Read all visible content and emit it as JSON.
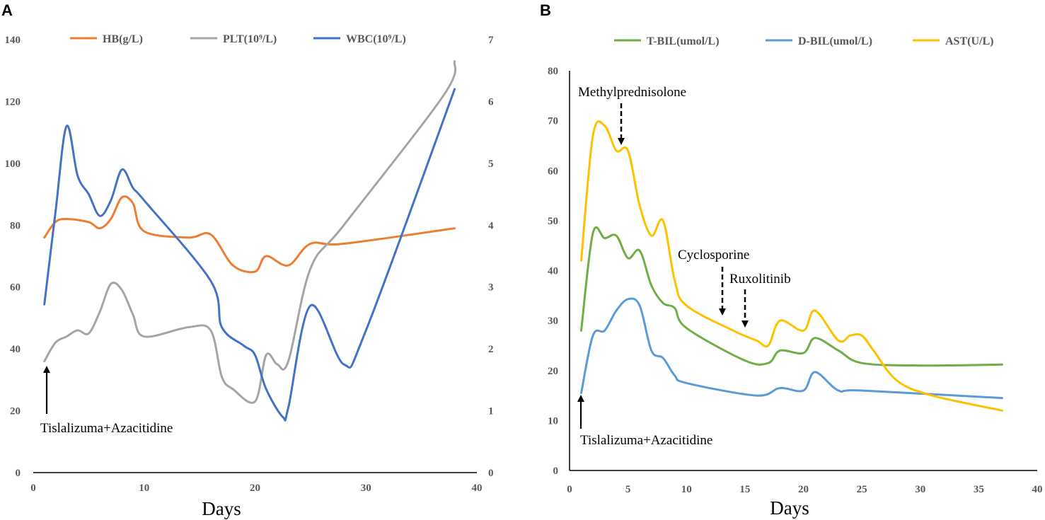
{
  "chart_data": [
    {
      "panel": "A",
      "type": "line",
      "xlabel": "Days",
      "xlim": [
        0,
        40
      ],
      "xticks": [
        0,
        10,
        20,
        30,
        40
      ],
      "ylim_left": [
        0,
        140
      ],
      "yticks_left": [
        0,
        20,
        40,
        60,
        80,
        100,
        120,
        140
      ],
      "ylim_right": [
        0,
        7
      ],
      "yticks_right": [
        0,
        1,
        2,
        3,
        4,
        5,
        6,
        7
      ],
      "legend_position": "top",
      "series": [
        {
          "name": "HB(g/L)",
          "axis": "left",
          "color": "#ED7D31",
          "x": [
            1,
            2,
            3,
            5,
            6,
            7,
            8,
            9,
            10,
            14,
            16,
            18,
            20,
            21,
            23,
            25,
            28,
            38
          ],
          "y": [
            76,
            81,
            82,
            81,
            79,
            82,
            89,
            87,
            78,
            76,
            77,
            67,
            65,
            70,
            67,
            74,
            74,
            79
          ]
        },
        {
          "name": "PLT(10⁹/L)",
          "axis": "left",
          "color": "#A5A5A5",
          "x": [
            1,
            2,
            3,
            4,
            5,
            6,
            7,
            8,
            9,
            10,
            14,
            16,
            17,
            18,
            20,
            21,
            22,
            23,
            25,
            28,
            37,
            38
          ],
          "y": [
            36,
            42,
            44,
            46,
            45,
            52,
            61,
            59,
            51,
            44,
            47,
            46,
            31,
            27,
            23,
            38,
            35,
            36,
            66,
            80,
            122,
            133
          ]
        },
        {
          "name": "WBC(10⁹/L)",
          "axis": "right",
          "color": "#4472C4",
          "x": [
            1,
            2,
            3,
            4,
            5,
            6,
            7,
            8,
            9,
            10,
            16,
            17,
            19,
            20,
            21,
            22.5,
            23,
            25,
            28,
            30,
            38
          ],
          "y": [
            2.72,
            4.2,
            5.6,
            4.8,
            4.5,
            4.15,
            4.4,
            4.9,
            4.6,
            4.4,
            3.1,
            2.35,
            2.05,
            1.9,
            1.35,
            0.9,
            1.05,
            2.7,
            1.75,
            2.3,
            6.2
          ]
        }
      ],
      "annotations": [
        {
          "text": "Tislalizuma+Azacitidine",
          "x": 1,
          "arrow": "up"
        }
      ]
    },
    {
      "panel": "B",
      "type": "line",
      "xlabel": "Days",
      "xlim": [
        0,
        40
      ],
      "xticks": [
        0,
        5,
        10,
        15,
        20,
        25,
        30,
        35,
        40
      ],
      "ylim": [
        0,
        80
      ],
      "yticks": [
        0,
        10,
        20,
        30,
        40,
        50,
        60,
        70,
        80
      ],
      "legend_position": "top",
      "series": [
        {
          "name": "T-BIL(umol/L)",
          "color": "#70AD47",
          "x": [
            1,
            2,
            3,
            4,
            5,
            6,
            7,
            8,
            9,
            10,
            15,
            17,
            18,
            20,
            21,
            23,
            25,
            30,
            37
          ],
          "y": [
            28,
            47.5,
            46.5,
            47,
            42.5,
            44,
            37,
            33.5,
            32.5,
            28.5,
            22,
            21.5,
            24,
            23.5,
            26.5,
            24,
            21.5,
            21,
            21.2
          ]
        },
        {
          "name": "D-BIL(umol/L)",
          "color": "#5B9BD5",
          "x": [
            1,
            2,
            3,
            4,
            5,
            6,
            7,
            8,
            9,
            10,
            16,
            18,
            20,
            21,
            23,
            25,
            37
          ],
          "y": [
            15.5,
            27,
            28,
            32,
            34.3,
            33,
            24,
            22.5,
            19,
            17.5,
            15,
            16.5,
            16,
            19.7,
            16,
            16,
            14.5
          ]
        },
        {
          "name": "AST(U/L)",
          "color": "#FFC000",
          "x": [
            1,
            2,
            3,
            4,
            5,
            6,
            7,
            8,
            9,
            10,
            14,
            16,
            17,
            18,
            20,
            21,
            23,
            24,
            25,
            26,
            28,
            31,
            37
          ],
          "y": [
            42,
            67,
            69,
            64,
            64,
            53,
            47,
            50,
            38,
            33,
            28,
            26,
            25,
            30,
            28,
            32,
            26,
            27,
            27,
            24,
            18,
            15,
            12
          ]
        }
      ],
      "annotations": [
        {
          "text": "Methylprednisolone",
          "x": 4.5,
          "arrow": "down-dashed"
        },
        {
          "text": "Cyclosporine",
          "x": 13,
          "arrow": "down-dashed"
        },
        {
          "text": "Ruxolitinib",
          "x": 15,
          "arrow": "down-dashed"
        },
        {
          "text": "Tislalizuma+Azacitidine",
          "x": 1,
          "arrow": "up"
        }
      ]
    }
  ]
}
